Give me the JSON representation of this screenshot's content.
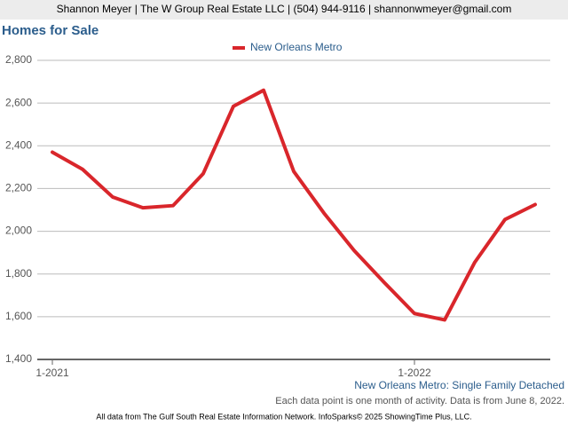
{
  "header": "Shannon Meyer | The W Group Real Estate LLC | (504) 944-9116 | shannonwmeyer@gmail.com",
  "chart_data": {
    "type": "line",
    "title": "Homes for Sale",
    "categories": [
      "1-2021",
      null,
      null,
      null,
      null,
      null,
      null,
      null,
      null,
      null,
      null,
      null,
      "1-2022",
      null,
      null,
      null,
      null
    ],
    "series": [
      {
        "name": "New Orleans Metro",
        "color": "#d9262b",
        "values": [
          2370,
          2290,
          2160,
          2110,
          2120,
          2270,
          2585,
          2660,
          2280,
          2085,
          1910,
          1760,
          1615,
          1585,
          1855,
          2055,
          2125
        ]
      }
    ],
    "ylim": [
      1400,
      2800
    ],
    "yticks": [
      {
        "value": 1400,
        "label": "1,400"
      },
      {
        "value": 1600,
        "label": "1,600"
      },
      {
        "value": 1800,
        "label": "1,800"
      },
      {
        "value": 2000,
        "label": "2,000"
      },
      {
        "value": 2200,
        "label": "2,200"
      },
      {
        "value": 2400,
        "label": "2,400"
      },
      {
        "value": 2600,
        "label": "2,600"
      },
      {
        "value": 2800,
        "label": "2,800"
      }
    ],
    "grid": true,
    "legend": "top",
    "subtitle": "New Orleans Metro: Single Family Detached",
    "note": "Each data point is one month of activity. Data is from June 8, 2022."
  },
  "footer": "All data from The Gulf South Real Estate Information Network. InfoSparks© 2025 ShowingTime Plus, LLC."
}
